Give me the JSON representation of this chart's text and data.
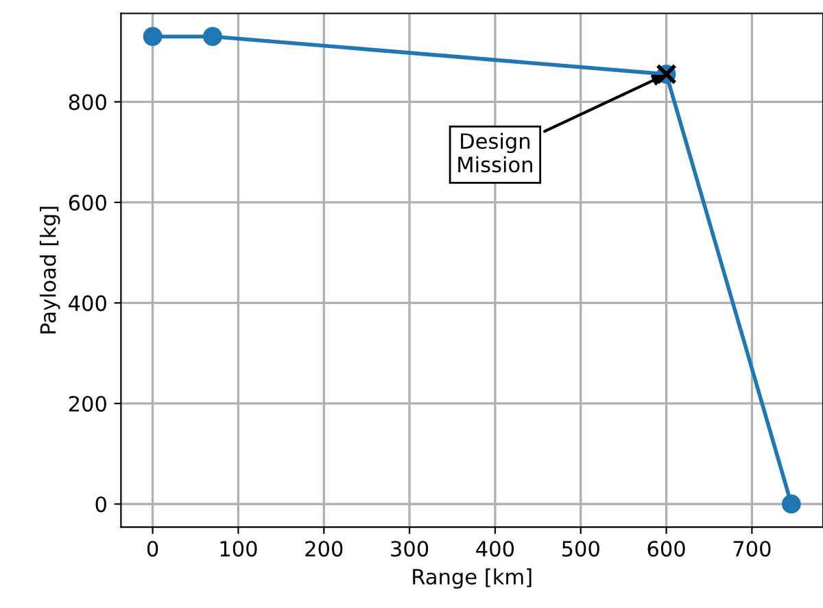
{
  "chart_data": {
    "type": "line",
    "xlabel": "Range [km]",
    "ylabel": "Payload [kg]",
    "series": [
      {
        "color": "#1f77b4",
        "marker": "circle",
        "x": [
          0,
          70,
          600,
          746
        ],
        "values": [
          930,
          930,
          855,
          0
        ]
      },
      {
        "type": "scatter",
        "color": "#000000",
        "marker": "cross",
        "x": [
          600
        ],
        "values": [
          855
        ]
      }
    ],
    "annotations": [
      {
        "text": "Design\nMission",
        "x": 600,
        "y": 855
      }
    ],
    "xlim": [
      -37,
      783
    ],
    "xticks": [
      0,
      100,
      200,
      300,
      400,
      500,
      600,
      700
    ],
    "ylim": [
      -46,
      976
    ],
    "yticks": [
      0,
      200,
      400,
      600,
      800
    ],
    "grid": true
  }
}
